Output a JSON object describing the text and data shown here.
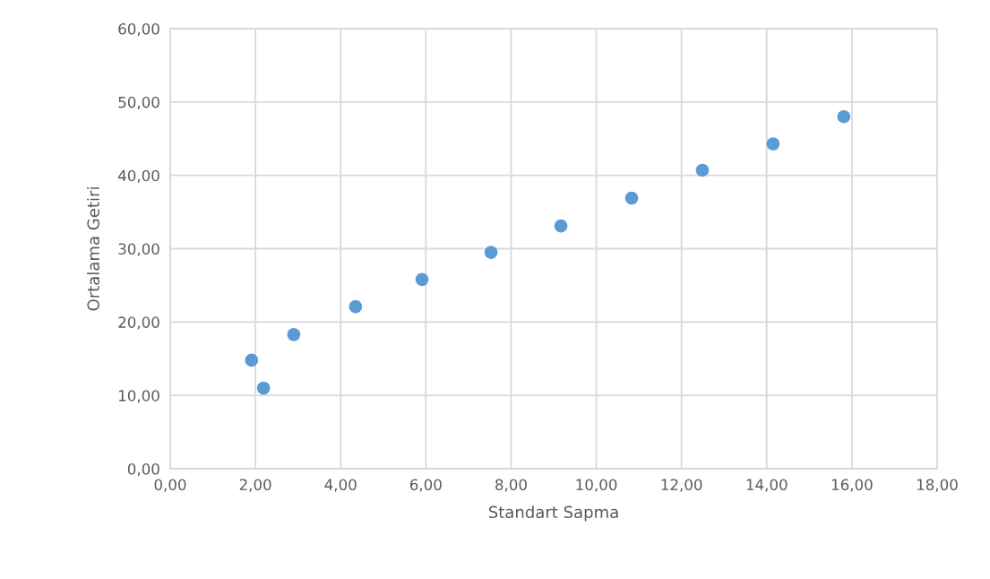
{
  "chart_data": {
    "type": "scatter",
    "xlabel": "Standart Sapma",
    "ylabel": "Ortalama Getiri",
    "x": [
      1.91,
      2.19,
      2.9,
      4.35,
      5.91,
      7.53,
      9.17,
      10.83,
      12.49,
      14.15,
      15.81
    ],
    "values": [
      14.8,
      11.0,
      18.3,
      22.1,
      25.8,
      29.5,
      33.1,
      36.9,
      40.7,
      44.3,
      48.0
    ],
    "color": "#5b9bd5",
    "marker": "circle",
    "grid": true,
    "xlim": [
      0,
      18
    ],
    "xticks": [
      {
        "value": 0,
        "label": "0,00"
      },
      {
        "value": 2,
        "label": "2,00"
      },
      {
        "value": 4,
        "label": "4,00"
      },
      {
        "value": 6,
        "label": "6,00"
      },
      {
        "value": 8,
        "label": "8,00"
      },
      {
        "value": 10,
        "label": "10,00"
      },
      {
        "value": 12,
        "label": "12,00"
      },
      {
        "value": 14,
        "label": "14,00"
      },
      {
        "value": 16,
        "label": "16,00"
      },
      {
        "value": 18,
        "label": "18,00"
      }
    ],
    "ylim": [
      0,
      60
    ],
    "yticks": [
      {
        "value": 0,
        "label": "0,00"
      },
      {
        "value": 10,
        "label": "10,00"
      },
      {
        "value": 20,
        "label": "20,00"
      },
      {
        "value": 30,
        "label": "30,00"
      },
      {
        "value": 40,
        "label": "40,00"
      },
      {
        "value": 50,
        "label": "50,00"
      },
      {
        "value": 60,
        "label": "60,00"
      }
    ]
  }
}
